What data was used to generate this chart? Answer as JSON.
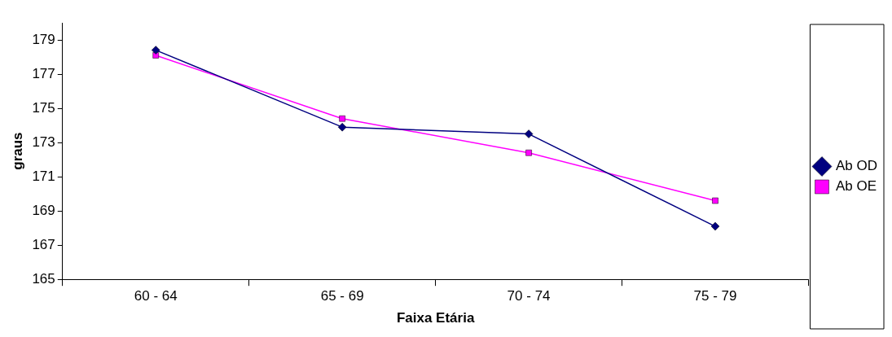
{
  "chart_data": {
    "type": "line",
    "xlabel": "Faixa Etária",
    "ylabel": "graus",
    "categories": [
      "60 - 64",
      "65 - 69",
      "70 - 74",
      "75 - 79"
    ],
    "series": [
      {
        "name": "Ab OD",
        "color": "#000080",
        "marker": "diamond",
        "values": [
          178.4,
          173.9,
          173.5,
          168.1
        ]
      },
      {
        "name": "Ab OE",
        "color": "#ff00ff",
        "marker": "square",
        "values": [
          178.1,
          174.4,
          172.4,
          169.6
        ]
      }
    ],
    "ylim": [
      165,
      180
    ],
    "yticks": [
      165,
      167,
      169,
      171,
      173,
      175,
      177,
      179
    ],
    "legend": "right"
  }
}
